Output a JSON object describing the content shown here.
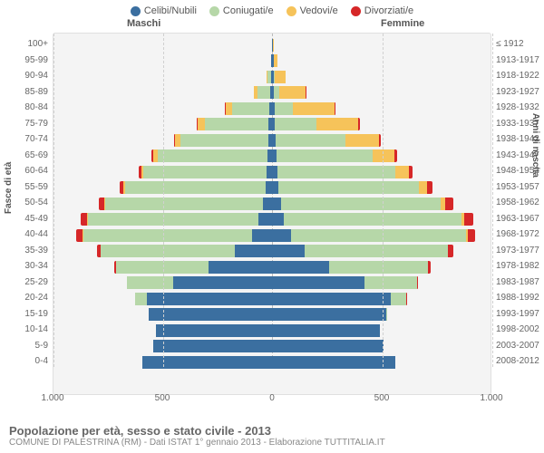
{
  "type": "population-pyramid",
  "legend": [
    {
      "label": "Celibi/Nubili",
      "color": "#3b6fa0"
    },
    {
      "label": "Coniugati/e",
      "color": "#b6d7a8"
    },
    {
      "label": "Vedovi/e",
      "color": "#f6c35a"
    },
    {
      "label": "Divorziati/e",
      "color": "#d62728"
    }
  ],
  "headers": {
    "male": "Maschi",
    "female": "Femmine"
  },
  "axes": {
    "left_title": "Fasce di età",
    "right_title": "Anni di nascita",
    "x_max": 1000,
    "x_ticks": [
      1000,
      500,
      0,
      500,
      1000
    ],
    "grid_positions_male": [
      1000,
      500
    ],
    "grid_positions_female": [
      500,
      1000
    ]
  },
  "age_bands": [
    "100+",
    "95-99",
    "90-94",
    "85-89",
    "80-84",
    "75-79",
    "70-74",
    "65-69",
    "60-64",
    "55-59",
    "50-54",
    "45-49",
    "40-44",
    "35-39",
    "30-34",
    "25-29",
    "20-24",
    "15-19",
    "10-14",
    "5-9",
    "0-4"
  ],
  "birth_years": [
    "≤ 1912",
    "1913-1917",
    "1918-1922",
    "1923-1927",
    "1928-1932",
    "1933-1937",
    "1938-1942",
    "1943-1947",
    "1948-1952",
    "1953-1957",
    "1958-1962",
    "1963-1967",
    "1968-1972",
    "1973-1977",
    "1978-1982",
    "1983-1987",
    "1988-1992",
    "1993-1997",
    "1998-2002",
    "2003-2007",
    "2008-2012"
  ],
  "data": {
    "male": [
      {
        "c": 1,
        "m": 0,
        "w": 0,
        "d": 0
      },
      {
        "c": 3,
        "m": 1,
        "w": 1,
        "d": 0
      },
      {
        "c": 5,
        "m": 15,
        "w": 5,
        "d": 0
      },
      {
        "c": 8,
        "m": 60,
        "w": 15,
        "d": 0
      },
      {
        "c": 12,
        "m": 170,
        "w": 30,
        "d": 2
      },
      {
        "c": 15,
        "m": 290,
        "w": 35,
        "d": 3
      },
      {
        "c": 18,
        "m": 400,
        "w": 25,
        "d": 5
      },
      {
        "c": 22,
        "m": 500,
        "w": 18,
        "d": 8
      },
      {
        "c": 25,
        "m": 560,
        "w": 12,
        "d": 10
      },
      {
        "c": 30,
        "m": 640,
        "w": 8,
        "d": 15
      },
      {
        "c": 40,
        "m": 720,
        "w": 5,
        "d": 25
      },
      {
        "c": 60,
        "m": 780,
        "w": 3,
        "d": 30
      },
      {
        "c": 90,
        "m": 770,
        "w": 2,
        "d": 30
      },
      {
        "c": 170,
        "m": 610,
        "w": 1,
        "d": 18
      },
      {
        "c": 290,
        "m": 420,
        "w": 0,
        "d": 10
      },
      {
        "c": 450,
        "m": 210,
        "w": 0,
        "d": 3
      },
      {
        "c": 570,
        "m": 55,
        "w": 0,
        "d": 0
      },
      {
        "c": 560,
        "m": 3,
        "w": 0,
        "d": 0
      },
      {
        "c": 530,
        "m": 0,
        "w": 0,
        "d": 0
      },
      {
        "c": 540,
        "m": 0,
        "w": 0,
        "d": 0
      },
      {
        "c": 590,
        "m": 0,
        "w": 0,
        "d": 0
      }
    ],
    "female": [
      {
        "c": 3,
        "m": 0,
        "w": 1,
        "d": 0
      },
      {
        "c": 8,
        "m": 0,
        "w": 15,
        "d": 0
      },
      {
        "c": 8,
        "m": 3,
        "w": 50,
        "d": 0
      },
      {
        "c": 10,
        "m": 25,
        "w": 120,
        "d": 1
      },
      {
        "c": 12,
        "m": 85,
        "w": 190,
        "d": 3
      },
      {
        "c": 14,
        "m": 190,
        "w": 190,
        "d": 5
      },
      {
        "c": 16,
        "m": 320,
        "w": 150,
        "d": 8
      },
      {
        "c": 20,
        "m": 440,
        "w": 100,
        "d": 12
      },
      {
        "c": 24,
        "m": 540,
        "w": 60,
        "d": 18
      },
      {
        "c": 30,
        "m": 640,
        "w": 35,
        "d": 25
      },
      {
        "c": 40,
        "m": 730,
        "w": 20,
        "d": 35
      },
      {
        "c": 55,
        "m": 810,
        "w": 12,
        "d": 40
      },
      {
        "c": 85,
        "m": 800,
        "w": 6,
        "d": 35
      },
      {
        "c": 150,
        "m": 650,
        "w": 3,
        "d": 25
      },
      {
        "c": 260,
        "m": 450,
        "w": 1,
        "d": 12
      },
      {
        "c": 420,
        "m": 240,
        "w": 0,
        "d": 5
      },
      {
        "c": 540,
        "m": 70,
        "w": 0,
        "d": 1
      },
      {
        "c": 520,
        "m": 5,
        "w": 0,
        "d": 0
      },
      {
        "c": 490,
        "m": 0,
        "w": 0,
        "d": 0
      },
      {
        "c": 510,
        "m": 0,
        "w": 0,
        "d": 0
      },
      {
        "c": 560,
        "m": 0,
        "w": 0,
        "d": 0
      }
    ]
  },
  "colors": {
    "celibi": "#3b6fa0",
    "coniugati": "#b6d7a8",
    "vedovi": "#f6c35a",
    "divorziati": "#d62728",
    "background": "#f4f4f4",
    "grid": "#d0d0d0"
  },
  "footer": {
    "title": "Popolazione per età, sesso e stato civile - 2013",
    "subtitle": "COMUNE DI PALESTRINA (RM) - Dati ISTAT 1° gennaio 2013 - Elaborazione TUTTITALIA.IT"
  }
}
